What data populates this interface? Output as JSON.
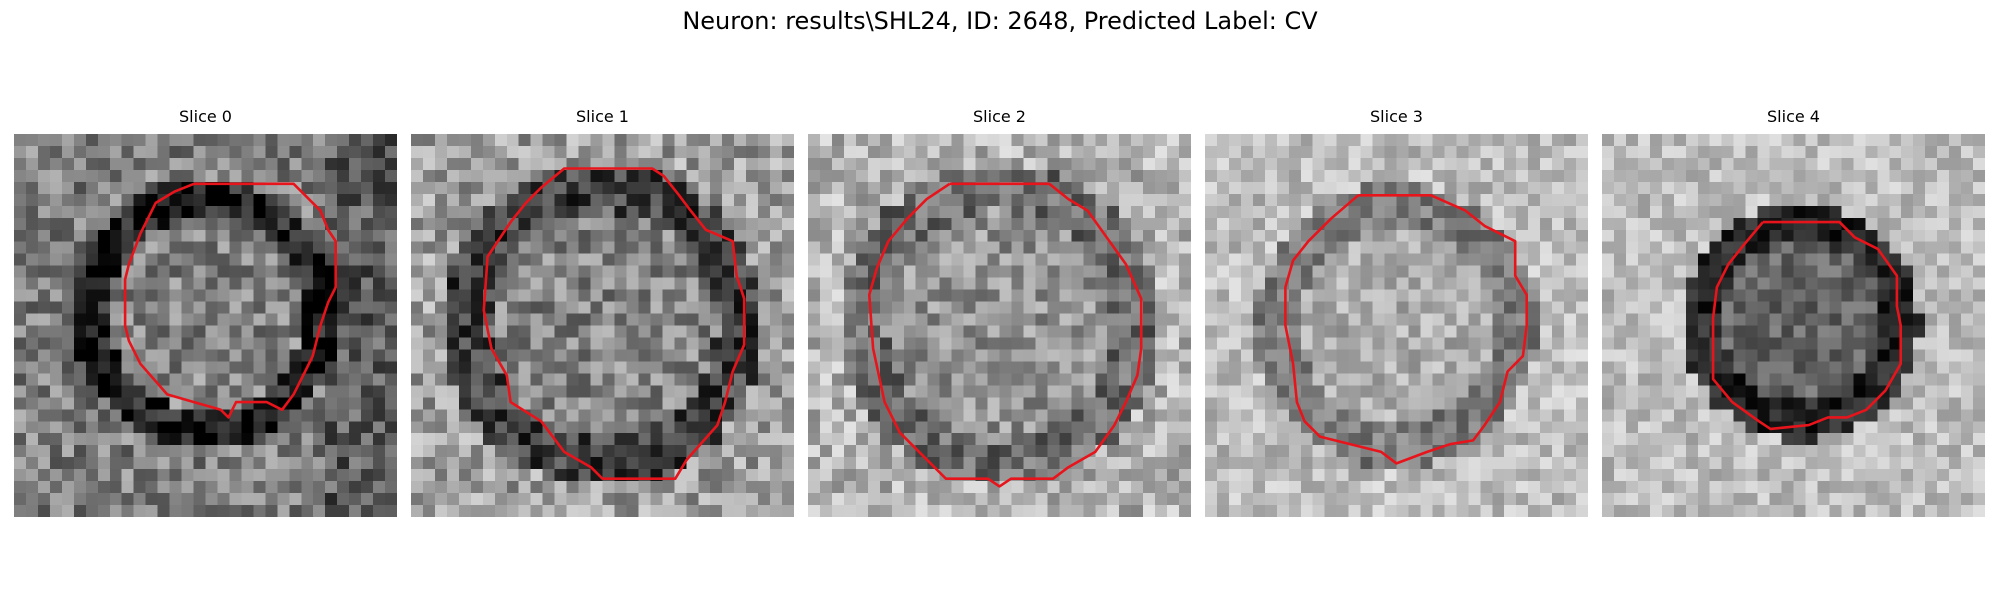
{
  "figure": {
    "title": "Neuron: results\\SHL24, ID: 2648, Predicted Label: CV"
  },
  "contour_color": "#e8141b",
  "panels": [
    {
      "title": "Slice 0"
    },
    {
      "title": "Slice 1"
    },
    {
      "title": "Slice 2"
    },
    {
      "title": "Slice 3"
    },
    {
      "title": "Slice 4"
    }
  ]
}
